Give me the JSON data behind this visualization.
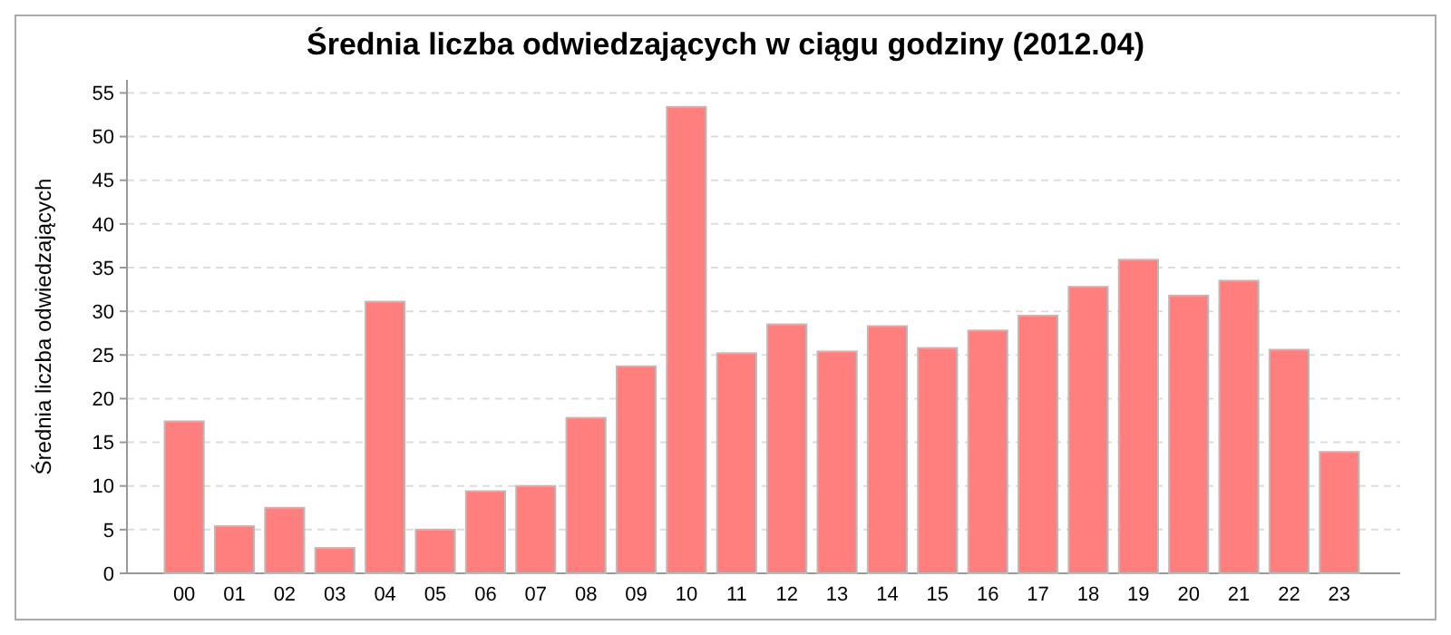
{
  "chart_data": {
    "type": "bar",
    "title": "Średnia liczba odwiedzających w ciągu godziny (2012.04)",
    "ylabel": "Średnia liczba odwiedzających",
    "categories": [
      "00",
      "01",
      "02",
      "03",
      "04",
      "05",
      "06",
      "07",
      "08",
      "09",
      "10",
      "11",
      "12",
      "13",
      "14",
      "15",
      "16",
      "17",
      "18",
      "19",
      "20",
      "21",
      "22",
      "23"
    ],
    "values": [
      17.4,
      5.4,
      7.5,
      2.9,
      31.1,
      5.0,
      9.4,
      10.0,
      17.8,
      23.7,
      53.4,
      25.2,
      28.5,
      25.4,
      28.3,
      25.8,
      27.8,
      29.5,
      32.8,
      35.9,
      31.8,
      33.5,
      25.6,
      13.9
    ],
    "color": "#ff7f7f",
    "ylim": [
      0,
      56.5
    ],
    "yticks": [
      0,
      5,
      10,
      15,
      20,
      25,
      30,
      35,
      40,
      45,
      50,
      55
    ],
    "grid": "y"
  }
}
